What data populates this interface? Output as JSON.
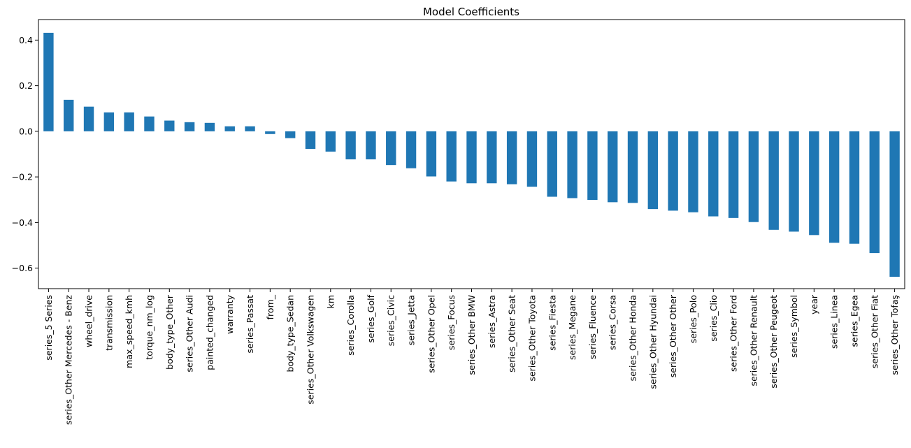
{
  "chart_data": {
    "type": "bar",
    "title": "Model Coefficients",
    "xlabel": "",
    "ylabel": "",
    "ylim": [
      -0.69,
      0.49
    ],
    "yticks": [
      -0.6,
      -0.4,
      -0.2,
      0.0,
      0.2,
      0.4
    ],
    "ytick_labels": [
      "−0.6",
      "−0.4",
      "−0.2",
      "0.0",
      "0.2",
      "0.4"
    ],
    "grid": false,
    "bar_color": "#1f77b4",
    "categories": [
      "series_5 Series",
      "series_Other Mercedes - Benz",
      "wheel_drive",
      "transmission",
      "max_speed_kmh",
      "torque_nm_log",
      "body_type_Other",
      "series_Other Audi",
      "painted_changed",
      "warranty",
      "series_Passat",
      "from_",
      "body_type_Sedan",
      "series_Other Volkswagen",
      "km",
      "series_Corolla",
      "series_Golf",
      "series_Civic",
      "series_Jetta",
      "series_Other Opel",
      "series_Focus",
      "series_Other BMW",
      "series_Astra",
      "series_Other Seat",
      "series_Other Toyota",
      "series_Fiesta",
      "series_Megane",
      "series_Fluence",
      "series_Corsa",
      "series_Other Honda",
      "series_Other Hyundai",
      "series_Other Other",
      "series_Polo",
      "series_Clio",
      "series_Other Ford",
      "series_Other Renault",
      "series_Other Peugeot",
      "series_Symbol",
      "year",
      "series_Linea",
      "series_Egea",
      "series_Other Fiat",
      "series_Other Tofaş"
    ],
    "values": [
      0.432,
      0.138,
      0.108,
      0.083,
      0.083,
      0.065,
      0.047,
      0.04,
      0.037,
      0.022,
      0.022,
      -0.012,
      -0.03,
      -0.077,
      -0.089,
      -0.123,
      -0.123,
      -0.148,
      -0.162,
      -0.198,
      -0.22,
      -0.228,
      -0.228,
      -0.232,
      -0.243,
      -0.287,
      -0.293,
      -0.301,
      -0.311,
      -0.314,
      -0.341,
      -0.348,
      -0.355,
      -0.373,
      -0.38,
      -0.398,
      -0.432,
      -0.44,
      -0.455,
      -0.489,
      -0.493,
      -0.534,
      -0.638
    ]
  }
}
